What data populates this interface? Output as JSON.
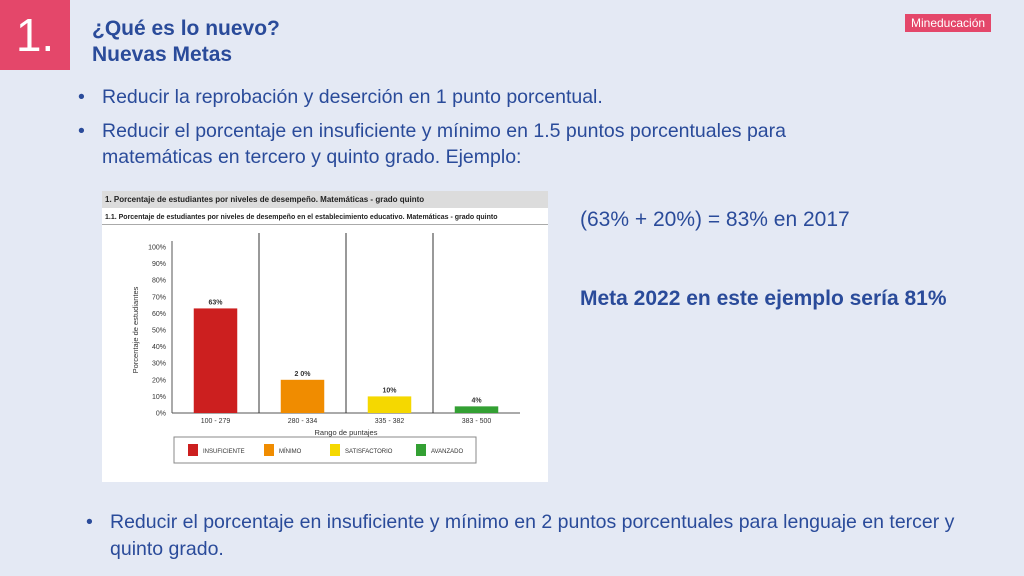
{
  "slide_number": "1.",
  "title_line1": "¿Qué es lo nuevo?",
  "title_line2": "Nuevas Metas",
  "badge": "Mineducación",
  "bullets": [
    "Reducir la reprobación  y deserción en 1 punto porcentual.",
    "Reducir el porcentaje en insuficiente y mínimo en 1.5 puntos porcentuales para matemáticas en tercero y quinto grado. Ejemplo:"
  ],
  "bullet_symbol": "•",
  "calc_text": "(63% + 20%) = 83% en 2017",
  "meta_text": "Meta 2022 en este ejemplo sería 81%",
  "bottom_bullet": "Reducir el porcentaje en insuficiente y mínimo en 2 puntos porcentuales para lenguaje en tercer y quinto grado.",
  "chart_header1": "1. Porcentaje de estudiantes por niveles de desempeño. Matemáticas - grado quinto",
  "chart_header2": "1.1. Porcentaje de estudiantes por niveles de desempeño en el establecimiento educativo. Matemáticas - grado quinto",
  "chart_data": {
    "type": "bar",
    "categories": [
      "100 - 279",
      "280 - 334",
      "335 - 382",
      "383 - 500"
    ],
    "values": [
      63,
      20,
      10,
      4
    ],
    "value_labels": [
      "63%",
      "2 0%",
      "10%",
      "4%"
    ],
    "colors": [
      "#cc1f1f",
      "#f08c00",
      "#f5d800",
      "#33a033"
    ],
    "xlabel": "Rango de puntajes",
    "ylabel": "Porcentaje de estudiantes",
    "ylim": [
      0,
      100
    ],
    "yticks": [
      "0%",
      "10%",
      "20%",
      "30%",
      "40%",
      "50%",
      "60%",
      "70%",
      "80%",
      "90%",
      "100%"
    ],
    "legend": [
      "INSUFICIENTE",
      "MÍNIMO",
      "SATISFACTORIO",
      "AVANZADO"
    ],
    "legend_placement": "bottom"
  }
}
